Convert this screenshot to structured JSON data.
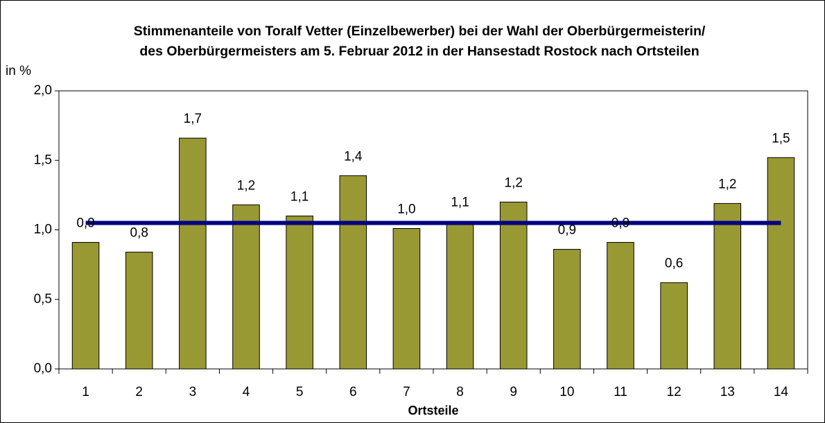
{
  "chart_data": {
    "type": "bar",
    "title": "Stimmenanteile von Toralf Vetter (Einzelbewerber) bei der Wahl der Oberbürgermeisterin/",
    "subtitle": "des Oberbürgermeisters am 5. Februar 2012 in der Hansestadt Rostock nach Ortsteilen",
    "y_label": "in %",
    "x_label": "Ortsteile",
    "categories": [
      "1",
      "2",
      "3",
      "4",
      "5",
      "6",
      "7",
      "8",
      "9",
      "10",
      "11",
      "12",
      "13",
      "14"
    ],
    "values": [
      0.91,
      0.84,
      1.66,
      1.18,
      1.1,
      1.39,
      1.01,
      1.06,
      1.2,
      0.86,
      0.91,
      0.62,
      1.19,
      1.52
    ],
    "value_labels": [
      "0,9",
      "0,8",
      "1,7",
      "1,2",
      "1,1",
      "1,4",
      "1,0",
      "1,1",
      "1,2",
      "0,9",
      "0,9",
      "0,6",
      "1,2",
      "1,5"
    ],
    "color": "#999933",
    "reference_line": 1.05,
    "reference_color": "#000080",
    "ylim": [
      0,
      2
    ],
    "yticks": [
      {
        "value": 0,
        "label": "0,0"
      },
      {
        "value": 0.5,
        "label": "0,5"
      },
      {
        "value": 1,
        "label": "1,0"
      },
      {
        "value": 1.5,
        "label": "1,5"
      },
      {
        "value": 2,
        "label": "2,0"
      }
    ],
    "grid": false
  }
}
